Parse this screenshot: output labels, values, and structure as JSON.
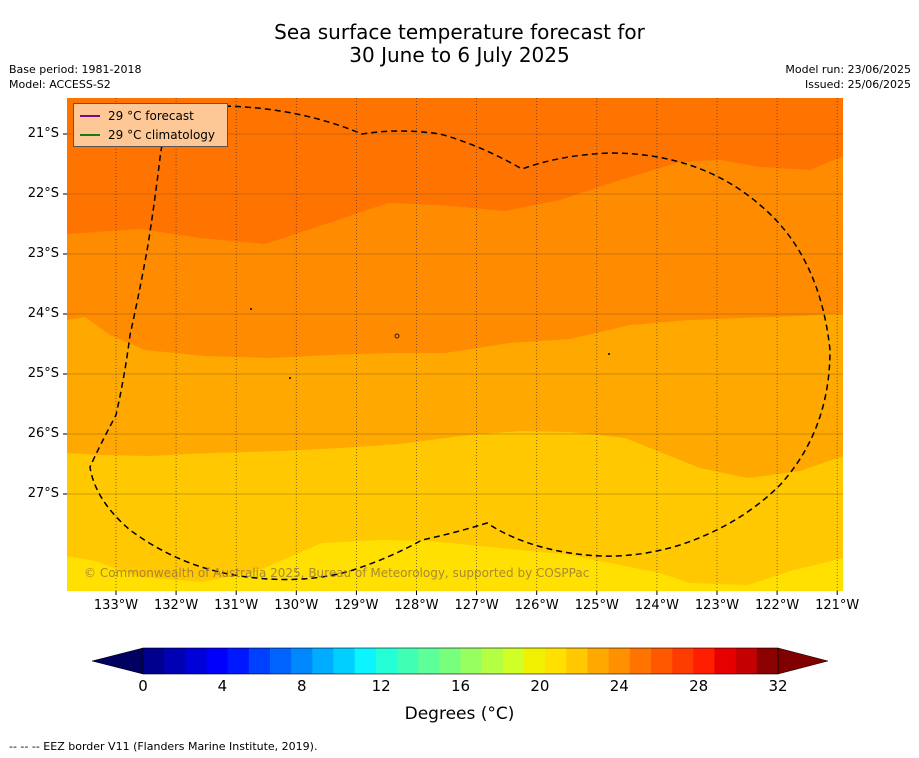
{
  "title": {
    "line1": "Sea surface temperature forecast for",
    "line2": "30 June to 6 July 2025"
  },
  "meta_left": {
    "base_period": "Base period: 1981-2018",
    "model": "Model: ACCESS-S2"
  },
  "meta_right": {
    "model_run": "Model run: 23/06/2025",
    "issued": "Issued: 25/06/2025"
  },
  "legend": {
    "forecast": "29 °C  forecast",
    "climatology": "29 °C  climatology",
    "forecast_color": "#7b0a8a",
    "climatology_color": "#1a7a1a"
  },
  "lat_labels": [
    "21°S",
    "22°S",
    "23°S",
    "24°S",
    "25°S",
    "26°S",
    "27°S"
  ],
  "lon_labels": [
    "133°W",
    "132°W",
    "131°W",
    "130°W",
    "129°W",
    "128°W",
    "127°W",
    "126°W",
    "125°W",
    "124°W",
    "123°W",
    "122°W",
    "121°W"
  ],
  "copyright": "© Commonwealth of Australia 2025, Bureau of Meteorology, supported by COSPPac",
  "colorbar": {
    "ticks": [
      "0",
      "4",
      "8",
      "12",
      "16",
      "20",
      "24",
      "28",
      "32"
    ],
    "label": "Degrees (°C)",
    "colors": [
      "#00008f",
      "#0000b4",
      "#0000d8",
      "#0000fc",
      "#0018ff",
      "#0040ff",
      "#0064ff",
      "#0088ff",
      "#00acff",
      "#00d0ff",
      "#0cf4ff",
      "#24ffd8",
      "#40ffb4",
      "#5cff98",
      "#78ff7c",
      "#98ff60",
      "#b4ff44",
      "#d0ff28",
      "#f0f000",
      "#ffe000",
      "#ffc800",
      "#ffa800",
      "#ff9000",
      "#ff7400",
      "#ff5800",
      "#ff3c00",
      "#ff1e00",
      "#e60000",
      "#c40000",
      "#8b0000"
    ],
    "low_extension": "#000060",
    "high_extension": "#800000"
  },
  "map_colors": {
    "band_29": "#ff7400",
    "band_28": "#ff8c00",
    "band_27": "#ffa800",
    "band_26": "#ffc800",
    "band_25": "#ffe000"
  },
  "footnote": "-- -- -- EEZ border V11 (Flanders Marine Institute, 2019)."
}
